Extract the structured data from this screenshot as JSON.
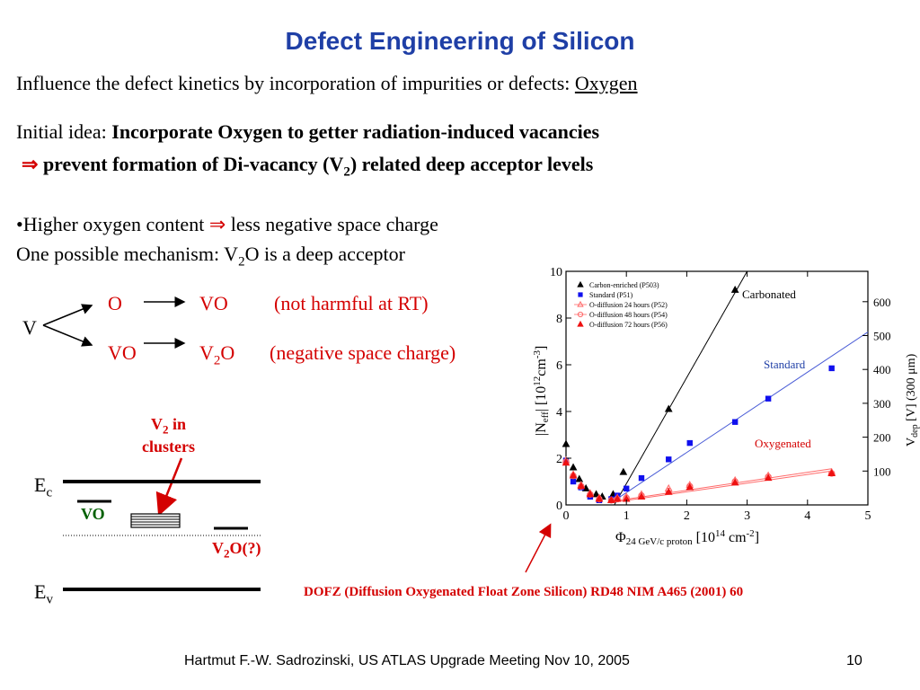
{
  "title": "Defect Engineering of Silicon",
  "intro": {
    "text": "Influence the defect kinetics by incorporation of impurities or defects: ",
    "oxygen": "Oxygen"
  },
  "idea": {
    "label": "Initial idea: ",
    "bold": "Incorporate Oxygen to getter radiation-induced vacancies",
    "arrow": "⇒",
    "prevent_pre": " prevent formation of  Di-vacancy (V",
    "prevent_sub": "2",
    "prevent_post": ")  related deep acceptor levels"
  },
  "bullet": {
    "pre": "•Higher oxygen content ",
    "arrow": "⇒",
    "post": " less negative space charge"
  },
  "mechanism": {
    "pre": "One possible mechanism:  V",
    "sub": "2",
    "post": "O is a deep acceptor"
  },
  "reactions": {
    "v": "V",
    "r1_left": "O",
    "r1_right": "VO",
    "r1_note": "(not harmful at RT)",
    "r2_left": "VO",
    "r2_right_pre": "V",
    "r2_right_sub": "2",
    "r2_right_post": "O",
    "r2_note": "(negative space charge)"
  },
  "band": {
    "v2_label": "V",
    "v2_sub": "2",
    "v2_post": " in",
    "clusters": "clusters",
    "ec": "E",
    "ec_sub": "c",
    "ev": "E",
    "ev_sub": "v",
    "vo": "VO",
    "v2o_pre": "V",
    "v2o_sub": "2",
    "v2o_post": "O(?)"
  },
  "dofz": "DOFZ (Diffusion Oxygenated Float Zone Silicon) RD48 NIM A465 (2001) 60",
  "footer": {
    "author": "Hartmut F.-W. Sadrozinski, US ATLAS Upgrade Meeting Nov 10,  2005",
    "page": "10"
  },
  "chart_data": {
    "type": "scatter",
    "xlabel_main": "Φ",
    "xlabel_sub": "24 GeV/c proton",
    "xlabel_unit_pre": " [10",
    "xlabel_unit_sup": "14",
    "xlabel_unit_mid": " cm",
    "xlabel_unit_sup2": "-2",
    "xlabel_unit_post": "]",
    "ylabel_left": "|N",
    "ylabel_left_sub": "eff",
    "ylabel_left_post": "|  [10",
    "ylabel_left_sup": "12",
    "ylabel_left_post2": "cm",
    "ylabel_left_sup2": "-3",
    "ylabel_left_end": "]",
    "ylabel_right": "V",
    "ylabel_right_sub": "dep",
    "ylabel_right_post": " [V] (300 μm)",
    "xlim": [
      0,
      5
    ],
    "ylim": [
      0,
      10
    ],
    "xticks": [
      "0",
      "1",
      "2",
      "3",
      "4",
      "5"
    ],
    "yticks": [
      "0",
      "2",
      "4",
      "6",
      "8",
      "10"
    ],
    "yticks_right": [
      "100",
      "200",
      "300",
      "400",
      "500",
      "600"
    ],
    "yticks_right_at": [
      1.45,
      2.9,
      4.35,
      5.8,
      7.25,
      8.7
    ],
    "annotations": {
      "carbonated": "Carbonated",
      "standard": "Standard",
      "oxygenated": "Oxygenated"
    },
    "annotation_colors": {
      "carbonated": "#000000",
      "standard": "#1f3fa6",
      "oxygenated": "#d40000"
    },
    "legend_position": "top-left",
    "legend": [
      "Carbon-enriched (P503)",
      "Standard (P51)",
      "O-diffusion 24 hours (P52)",
      "O-diffusion 48 hours (P54)",
      "O-diffusion 72 hours (P56)"
    ],
    "series": [
      {
        "name": "Carbon-enriched (P503)",
        "marker": "triangle-filled",
        "color": "#000000",
        "x": [
          0,
          0.12,
          0.22,
          0.33,
          0.5,
          0.6,
          0.78,
          0.95,
          1.7,
          2.8
        ],
        "y": [
          2.6,
          1.6,
          1.1,
          0.7,
          0.45,
          0.35,
          0.45,
          1.4,
          4.1,
          9.2
        ]
      },
      {
        "name": "Standard (P51)",
        "marker": "square-filled",
        "color": "#1010ee",
        "x": [
          0,
          0.12,
          0.25,
          0.4,
          0.55,
          0.75,
          0.85,
          1.0,
          1.25,
          1.7,
          2.05,
          2.8,
          3.35,
          4.4
        ],
        "y": [
          1.9,
          1.0,
          0.75,
          0.35,
          0.2,
          0.25,
          0.4,
          0.7,
          1.15,
          1.95,
          2.65,
          3.55,
          4.55,
          5.85
        ]
      },
      {
        "name": "O-diffusion 24 hours (P52)",
        "marker": "triangle-open",
        "color": "#ff6a6a",
        "x": [
          0,
          0.12,
          0.25,
          0.4,
          0.55,
          0.75,
          0.85,
          1.0,
          1.25,
          1.7,
          2.05,
          2.8,
          3.35,
          4.4
        ],
        "y": [
          1.9,
          1.3,
          0.85,
          0.5,
          0.3,
          0.2,
          0.3,
          0.35,
          0.45,
          0.7,
          0.85,
          1.05,
          1.25,
          1.4
        ]
      },
      {
        "name": "O-diffusion 48 hours (P54)",
        "marker": "circle-open",
        "color": "#ff6a6a",
        "x": [
          0,
          0.12,
          0.25,
          0.4,
          0.55,
          0.75,
          0.85,
          1.0,
          1.25,
          1.7,
          2.05,
          2.8,
          3.35,
          4.4
        ],
        "y": [
          1.85,
          1.25,
          0.8,
          0.45,
          0.25,
          0.2,
          0.25,
          0.3,
          0.4,
          0.6,
          0.8,
          1.0,
          1.2,
          1.35
        ]
      },
      {
        "name": "O-diffusion 72 hours (P56)",
        "marker": "triangle-filled",
        "color": "#ee1111",
        "x": [
          0,
          0.12,
          0.25,
          0.4,
          0.55,
          0.75,
          0.85,
          1.0,
          1.25,
          1.7,
          2.05,
          2.8,
          3.35,
          4.4
        ],
        "y": [
          1.8,
          1.25,
          0.8,
          0.45,
          0.25,
          0.2,
          0.25,
          0.25,
          0.35,
          0.55,
          0.75,
          0.95,
          1.15,
          1.35
        ]
      }
    ],
    "fit_lines": [
      {
        "color": "#000000",
        "x": [
          0.8,
          3.0
        ],
        "y": [
          0,
          10
        ]
      },
      {
        "color": "#4a5cd6",
        "x": [
          0.75,
          5.0
        ],
        "y": [
          0.1,
          7.4
        ]
      },
      {
        "color": "#ff6a6a",
        "x": [
          0.75,
          4.4
        ],
        "y": [
          0.15,
          1.55
        ]
      },
      {
        "color": "#ff6a6a",
        "x": [
          0.75,
          4.4
        ],
        "y": [
          0.1,
          1.45
        ]
      }
    ]
  }
}
